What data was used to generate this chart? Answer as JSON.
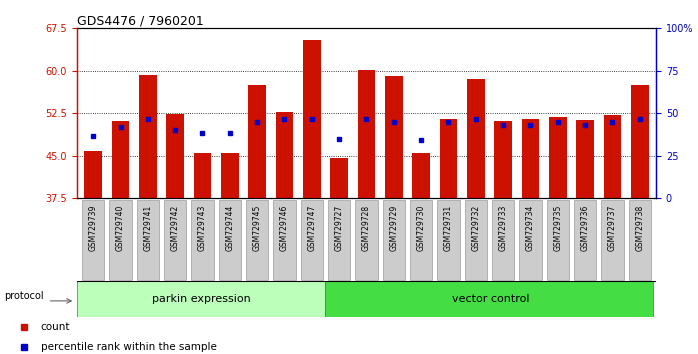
{
  "title": "GDS4476 / 7960201",
  "samples": [
    "GSM729739",
    "GSM729740",
    "GSM729741",
    "GSM729742",
    "GSM729743",
    "GSM729744",
    "GSM729745",
    "GSM729746",
    "GSM729747",
    "GSM729727",
    "GSM729728",
    "GSM729729",
    "GSM729730",
    "GSM729731",
    "GSM729732",
    "GSM729733",
    "GSM729734",
    "GSM729735",
    "GSM729736",
    "GSM729737",
    "GSM729738"
  ],
  "count_values": [
    45.8,
    51.2,
    59.3,
    52.3,
    45.5,
    45.5,
    57.5,
    52.8,
    65.5,
    44.6,
    60.2,
    59.1,
    45.5,
    51.5,
    58.5,
    51.2,
    51.5,
    51.8,
    51.3,
    52.2,
    57.5
  ],
  "percentile_values": [
    48.5,
    50.0,
    51.5,
    49.5,
    49.0,
    49.0,
    51.0,
    51.5,
    51.5,
    48.0,
    51.5,
    51.0,
    47.8,
    51.0,
    51.5,
    50.5,
    50.5,
    51.0,
    50.5,
    51.0,
    51.5
  ],
  "parkin_count": 9,
  "ylim_left": [
    37.5,
    67.5
  ],
  "ylim_right": [
    0,
    100
  ],
  "yticks_left": [
    37.5,
    45.0,
    52.5,
    60.0,
    67.5
  ],
  "yticks_right": [
    0,
    25,
    50,
    75,
    100
  ],
  "bar_color": "#CC1100",
  "percentile_color": "#0000CC",
  "parkin_bg": "#BBFFBB",
  "vector_bg": "#44DD44",
  "label_bg": "#CCCCCC",
  "grid_lines": [
    45.0,
    52.5,
    60.0
  ]
}
